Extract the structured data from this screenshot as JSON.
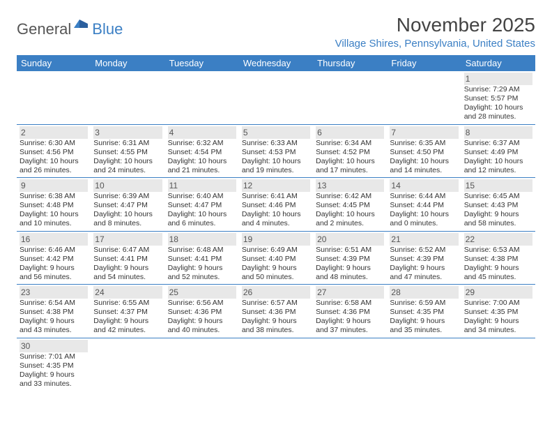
{
  "logo": {
    "general": "General",
    "blue": "Blue"
  },
  "title": "November 2025",
  "location": "Village Shires, Pennsylvania, United States",
  "colors": {
    "header_bg": "#3b7fc4",
    "header_fg": "#ffffff",
    "daynum_bg": "#e8e8e8",
    "border": "#3b7fc4",
    "text": "#333333"
  },
  "weekdays": [
    "Sunday",
    "Monday",
    "Tuesday",
    "Wednesday",
    "Thursday",
    "Friday",
    "Saturday"
  ],
  "weeks": [
    [
      null,
      null,
      null,
      null,
      null,
      null,
      {
        "n": "1",
        "sr": "Sunrise: 7:29 AM",
        "ss": "Sunset: 5:57 PM",
        "dl": "Daylight: 10 hours and 28 minutes."
      }
    ],
    [
      {
        "n": "2",
        "sr": "Sunrise: 6:30 AM",
        "ss": "Sunset: 4:56 PM",
        "dl": "Daylight: 10 hours and 26 minutes."
      },
      {
        "n": "3",
        "sr": "Sunrise: 6:31 AM",
        "ss": "Sunset: 4:55 PM",
        "dl": "Daylight: 10 hours and 24 minutes."
      },
      {
        "n": "4",
        "sr": "Sunrise: 6:32 AM",
        "ss": "Sunset: 4:54 PM",
        "dl": "Daylight: 10 hours and 21 minutes."
      },
      {
        "n": "5",
        "sr": "Sunrise: 6:33 AM",
        "ss": "Sunset: 4:53 PM",
        "dl": "Daylight: 10 hours and 19 minutes."
      },
      {
        "n": "6",
        "sr": "Sunrise: 6:34 AM",
        "ss": "Sunset: 4:52 PM",
        "dl": "Daylight: 10 hours and 17 minutes."
      },
      {
        "n": "7",
        "sr": "Sunrise: 6:35 AM",
        "ss": "Sunset: 4:50 PM",
        "dl": "Daylight: 10 hours and 14 minutes."
      },
      {
        "n": "8",
        "sr": "Sunrise: 6:37 AM",
        "ss": "Sunset: 4:49 PM",
        "dl": "Daylight: 10 hours and 12 minutes."
      }
    ],
    [
      {
        "n": "9",
        "sr": "Sunrise: 6:38 AM",
        "ss": "Sunset: 4:48 PM",
        "dl": "Daylight: 10 hours and 10 minutes."
      },
      {
        "n": "10",
        "sr": "Sunrise: 6:39 AM",
        "ss": "Sunset: 4:47 PM",
        "dl": "Daylight: 10 hours and 8 minutes."
      },
      {
        "n": "11",
        "sr": "Sunrise: 6:40 AM",
        "ss": "Sunset: 4:47 PM",
        "dl": "Daylight: 10 hours and 6 minutes."
      },
      {
        "n": "12",
        "sr": "Sunrise: 6:41 AM",
        "ss": "Sunset: 4:46 PM",
        "dl": "Daylight: 10 hours and 4 minutes."
      },
      {
        "n": "13",
        "sr": "Sunrise: 6:42 AM",
        "ss": "Sunset: 4:45 PM",
        "dl": "Daylight: 10 hours and 2 minutes."
      },
      {
        "n": "14",
        "sr": "Sunrise: 6:44 AM",
        "ss": "Sunset: 4:44 PM",
        "dl": "Daylight: 10 hours and 0 minutes."
      },
      {
        "n": "15",
        "sr": "Sunrise: 6:45 AM",
        "ss": "Sunset: 4:43 PM",
        "dl": "Daylight: 9 hours and 58 minutes."
      }
    ],
    [
      {
        "n": "16",
        "sr": "Sunrise: 6:46 AM",
        "ss": "Sunset: 4:42 PM",
        "dl": "Daylight: 9 hours and 56 minutes."
      },
      {
        "n": "17",
        "sr": "Sunrise: 6:47 AM",
        "ss": "Sunset: 4:41 PM",
        "dl": "Daylight: 9 hours and 54 minutes."
      },
      {
        "n": "18",
        "sr": "Sunrise: 6:48 AM",
        "ss": "Sunset: 4:41 PM",
        "dl": "Daylight: 9 hours and 52 minutes."
      },
      {
        "n": "19",
        "sr": "Sunrise: 6:49 AM",
        "ss": "Sunset: 4:40 PM",
        "dl": "Daylight: 9 hours and 50 minutes."
      },
      {
        "n": "20",
        "sr": "Sunrise: 6:51 AM",
        "ss": "Sunset: 4:39 PM",
        "dl": "Daylight: 9 hours and 48 minutes."
      },
      {
        "n": "21",
        "sr": "Sunrise: 6:52 AM",
        "ss": "Sunset: 4:39 PM",
        "dl": "Daylight: 9 hours and 47 minutes."
      },
      {
        "n": "22",
        "sr": "Sunrise: 6:53 AM",
        "ss": "Sunset: 4:38 PM",
        "dl": "Daylight: 9 hours and 45 minutes."
      }
    ],
    [
      {
        "n": "23",
        "sr": "Sunrise: 6:54 AM",
        "ss": "Sunset: 4:38 PM",
        "dl": "Daylight: 9 hours and 43 minutes."
      },
      {
        "n": "24",
        "sr": "Sunrise: 6:55 AM",
        "ss": "Sunset: 4:37 PM",
        "dl": "Daylight: 9 hours and 42 minutes."
      },
      {
        "n": "25",
        "sr": "Sunrise: 6:56 AM",
        "ss": "Sunset: 4:36 PM",
        "dl": "Daylight: 9 hours and 40 minutes."
      },
      {
        "n": "26",
        "sr": "Sunrise: 6:57 AM",
        "ss": "Sunset: 4:36 PM",
        "dl": "Daylight: 9 hours and 38 minutes."
      },
      {
        "n": "27",
        "sr": "Sunrise: 6:58 AM",
        "ss": "Sunset: 4:36 PM",
        "dl": "Daylight: 9 hours and 37 minutes."
      },
      {
        "n": "28",
        "sr": "Sunrise: 6:59 AM",
        "ss": "Sunset: 4:35 PM",
        "dl": "Daylight: 9 hours and 35 minutes."
      },
      {
        "n": "29",
        "sr": "Sunrise: 7:00 AM",
        "ss": "Sunset: 4:35 PM",
        "dl": "Daylight: 9 hours and 34 minutes."
      }
    ],
    [
      {
        "n": "30",
        "sr": "Sunrise: 7:01 AM",
        "ss": "Sunset: 4:35 PM",
        "dl": "Daylight: 9 hours and 33 minutes."
      },
      null,
      null,
      null,
      null,
      null,
      null
    ]
  ]
}
